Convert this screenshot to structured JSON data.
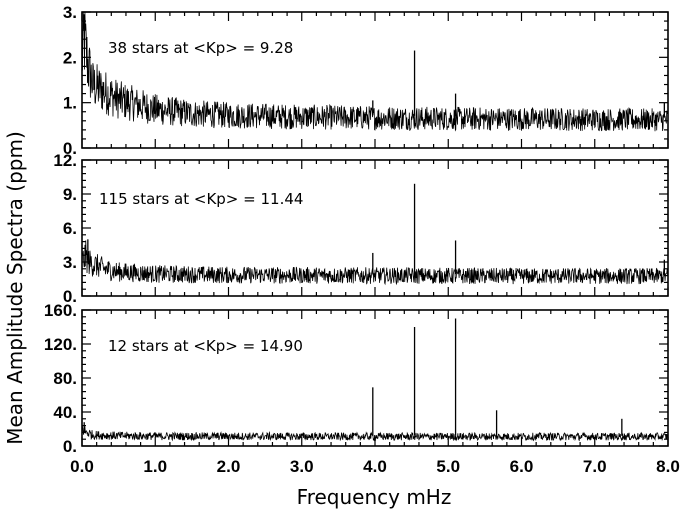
{
  "chart_data": {
    "type": "line",
    "xlabel": "Frequency mHz",
    "ylabel": "Mean Amplitude Spectra (ppm)",
    "xlim": [
      0,
      8
    ],
    "x_ticks": [
      0,
      1,
      2,
      3,
      4,
      5,
      6,
      7,
      8
    ],
    "x_tick_labels": [
      "0.0",
      "1.0",
      "2.0",
      "3.0",
      "4.0",
      "5.0",
      "6.0",
      "7.0",
      "8.0"
    ],
    "grid": false,
    "panels": [
      {
        "annotation": "38 stars at <Kp> =  9.28",
        "ylim": [
          0,
          3
        ],
        "y_ticks": [
          0,
          1,
          2,
          3
        ],
        "y_tick_labels": [
          "0.",
          "1.",
          "2.",
          "3."
        ],
        "noise_level": [
          {
            "x": 0.0,
            "y": 2.1
          },
          {
            "x": 0.03,
            "y": 2.6
          },
          {
            "x": 0.08,
            "y": 2.0
          },
          {
            "x": 0.15,
            "y": 1.5
          },
          {
            "x": 0.3,
            "y": 1.35
          },
          {
            "x": 0.5,
            "y": 1.15
          },
          {
            "x": 1.0,
            "y": 0.92
          },
          {
            "x": 1.5,
            "y": 0.82
          },
          {
            "x": 2.0,
            "y": 0.78
          },
          {
            "x": 3.0,
            "y": 0.74
          },
          {
            "x": 4.0,
            "y": 0.72
          },
          {
            "x": 5.0,
            "y": 0.7
          },
          {
            "x": 6.0,
            "y": 0.69
          },
          {
            "x": 7.0,
            "y": 0.68
          },
          {
            "x": 8.0,
            "y": 0.67
          }
        ],
        "peaks": [
          {
            "x": 0.03,
            "y": 2.95
          },
          {
            "x": 3.97,
            "y": 1.05
          },
          {
            "x": 4.54,
            "y": 2.15
          },
          {
            "x": 5.1,
            "y": 1.2
          },
          {
            "x": 7.95,
            "y": 1.0
          }
        ]
      },
      {
        "annotation": "115 stars at <Kp> = 11.44",
        "ylim": [
          0,
          12
        ],
        "y_ticks": [
          0,
          3,
          6,
          9,
          12
        ],
        "y_tick_labels": [
          "0.",
          "3.",
          "6.",
          "9.",
          "12."
        ],
        "noise_level": [
          {
            "x": 0.0,
            "y": 3.2
          },
          {
            "x": 0.05,
            "y": 3.8
          },
          {
            "x": 0.1,
            "y": 3.2
          },
          {
            "x": 0.3,
            "y": 2.6
          },
          {
            "x": 0.5,
            "y": 2.3
          },
          {
            "x": 1.0,
            "y": 2.1
          },
          {
            "x": 2.0,
            "y": 2.0
          },
          {
            "x": 4.0,
            "y": 1.95
          },
          {
            "x": 6.0,
            "y": 1.9
          },
          {
            "x": 8.0,
            "y": 1.9
          }
        ],
        "peaks": [
          {
            "x": 0.08,
            "y": 5.0
          },
          {
            "x": 3.97,
            "y": 3.8
          },
          {
            "x": 4.54,
            "y": 9.9
          },
          {
            "x": 5.1,
            "y": 4.9
          },
          {
            "x": 7.95,
            "y": 3.2
          }
        ]
      },
      {
        "annotation": "12 stars at <Kp> = 14.90",
        "ylim": [
          0,
          160
        ],
        "y_ticks": [
          0,
          40,
          80,
          120,
          160
        ],
        "y_tick_labels": [
          "0.",
          "40.",
          "80.",
          "120.",
          "160."
        ],
        "noise_level": [
          {
            "x": 0.0,
            "y": 22
          },
          {
            "x": 0.05,
            "y": 18
          },
          {
            "x": 0.15,
            "y": 14
          },
          {
            "x": 0.5,
            "y": 13
          },
          {
            "x": 1.0,
            "y": 12.5
          },
          {
            "x": 4.0,
            "y": 12
          },
          {
            "x": 8.0,
            "y": 12
          }
        ],
        "peaks": [
          {
            "x": 0.03,
            "y": 28
          },
          {
            "x": 3.97,
            "y": 69
          },
          {
            "x": 4.54,
            "y": 140
          },
          {
            "x": 5.1,
            "y": 150
          },
          {
            "x": 5.66,
            "y": 42
          },
          {
            "x": 7.37,
            "y": 32
          }
        ]
      }
    ]
  }
}
